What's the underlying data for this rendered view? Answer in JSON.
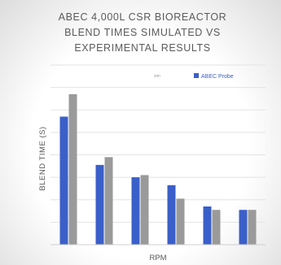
{
  "chart_data": {
    "type": "bar",
    "title": "ABEC 4,000L CSR BIOREACTOR\nBLEND TIMES SIMULATED VS\nEXPERIMENTAL RESULTS",
    "xlabel": "RPM",
    "ylabel": "BLEND TIME (S)",
    "categories": [
      "",
      "",
      "",
      "",
      "",
      ""
    ],
    "series": [
      {
        "name": "ABEC Probe",
        "color": "#3a5fc8",
        "values": [
          114,
          71,
          60,
          53,
          34,
          31
        ]
      },
      {
        "name": "",
        "color": "#9a9a9a",
        "values": [
          134,
          78,
          62,
          41,
          31,
          31
        ]
      }
    ],
    "legend_extra_text": "sim",
    "ylim": [
      0,
      160
    ],
    "grid": true,
    "legend_position": "top-right"
  }
}
